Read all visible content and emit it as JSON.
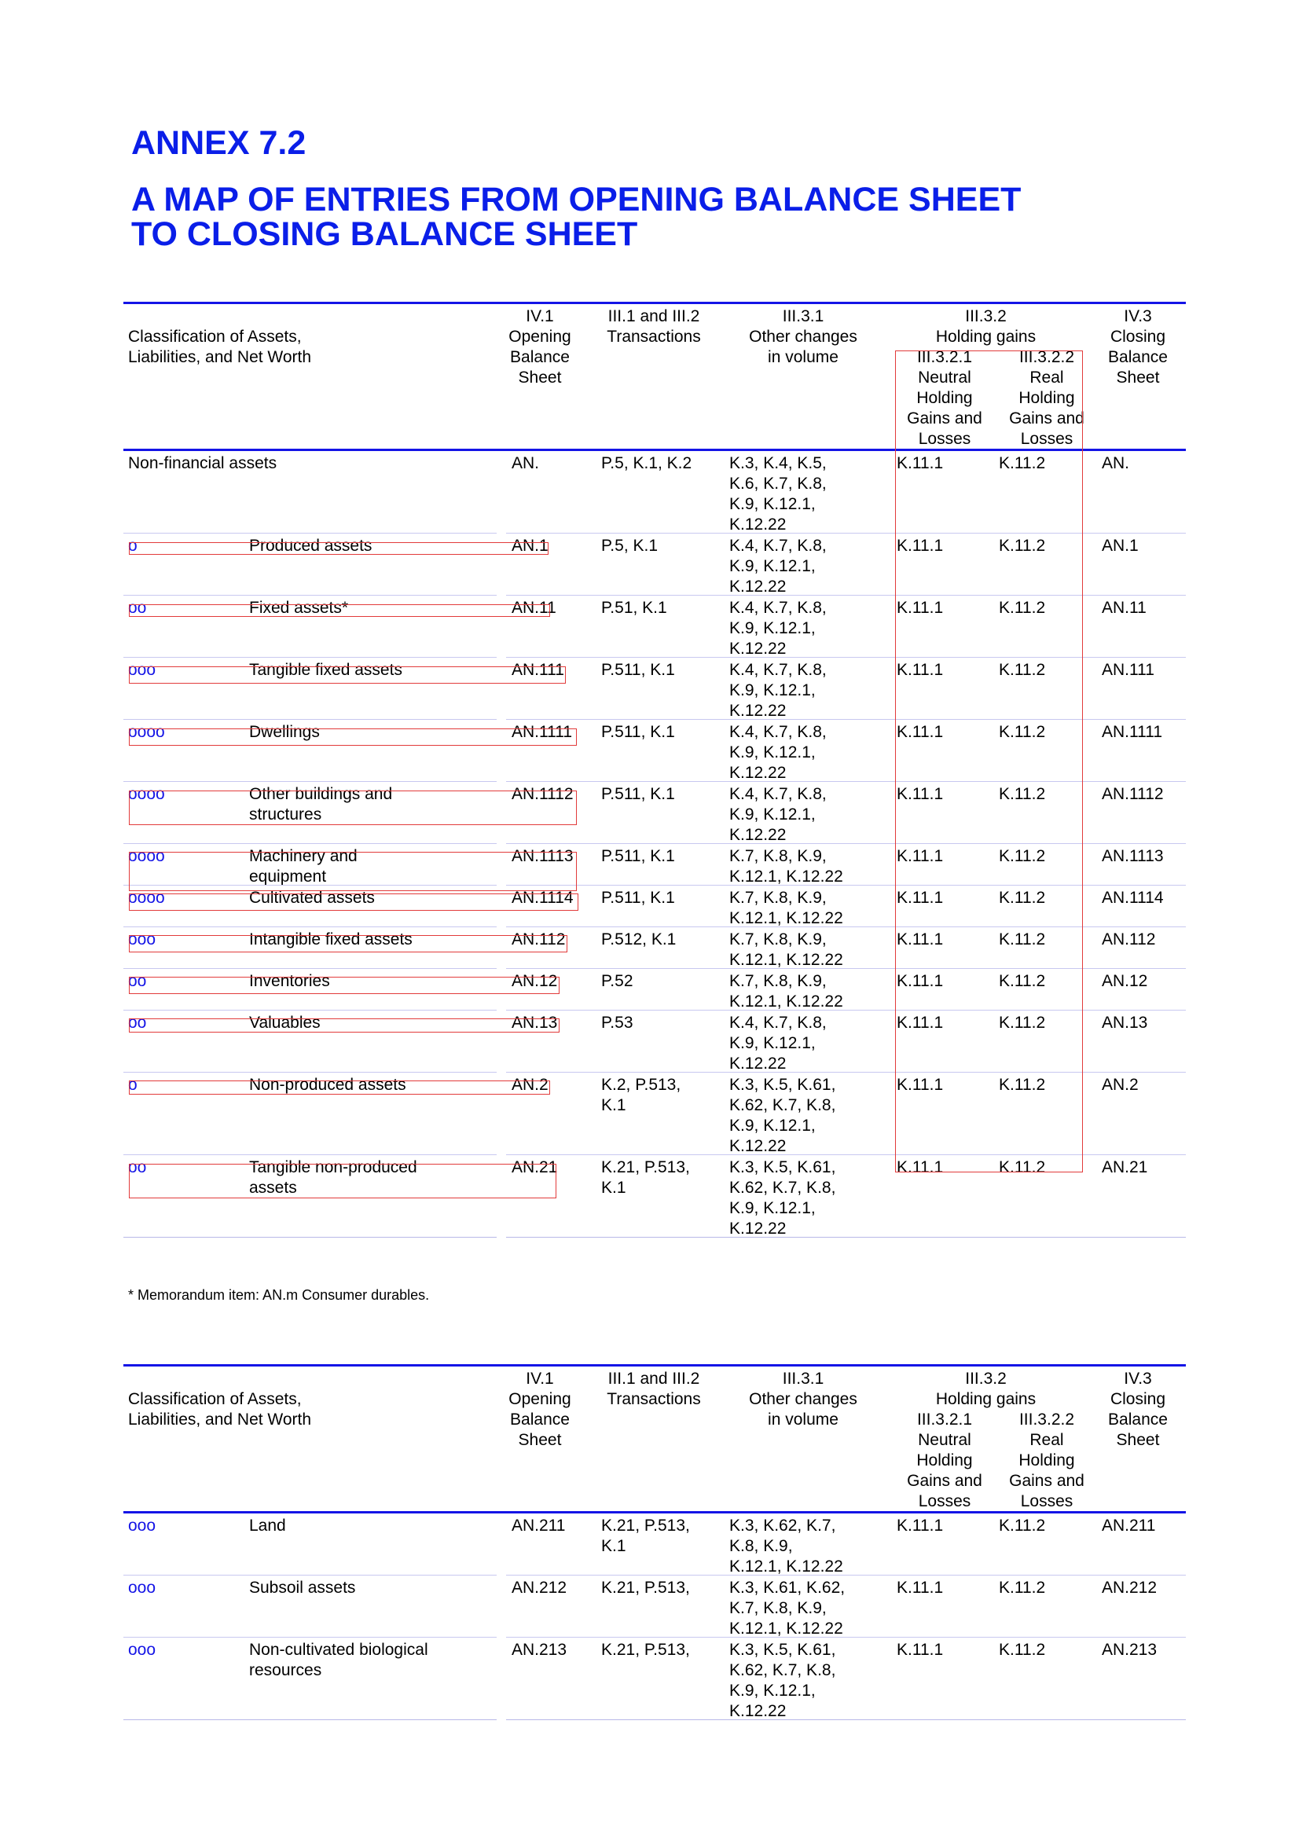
{
  "annex_title": "ANNEX 7.2",
  "main_title_line1": "A MAP OF ENTRIES FROM OPENING BALANCE SHEET",
  "main_title_line2": "TO CLOSING BALANCE SHEET",
  "header": {
    "classification": [
      "Classification of Assets,",
      "Liabilities, and Net Worth"
    ],
    "col1": [
      "IV.1",
      "Opening",
      "Balance",
      "Sheet"
    ],
    "col2": [
      "III.1 and III.2",
      "Transactions"
    ],
    "col3": [
      "III.3.1",
      "Other changes",
      "in volume"
    ],
    "col4": [
      "III.3.2",
      "Holding gains"
    ],
    "col4a": [
      "III.3.2.1",
      "Neutral",
      "Holding",
      "Gains and",
      "Losses"
    ],
    "col4b": [
      "III.3.2.2",
      "Real",
      "Holding",
      "Gains and",
      "Losses"
    ],
    "col5": [
      "IV.3",
      "Closing",
      "Balance",
      "Sheet"
    ]
  },
  "table1_rows": [
    {
      "level": "",
      "label": [
        "Non-financial assets"
      ],
      "code": "AN.",
      "trans": [
        "P.5, K.1, K.2"
      ],
      "other": [
        "K.3, K.4, K.5,",
        "K.6, K.7, K.8,",
        "K.9, K.12.1,",
        "K.12.22"
      ],
      "neutral": "K.11.1",
      "real": "K.11.2",
      "closing": "AN."
    },
    {
      "level": "o",
      "label": [
        "Produced assets"
      ],
      "code": "AN.1",
      "trans": [
        "P.5, K.1"
      ],
      "other": [
        "K.4, K.7, K.8,",
        "K.9, K.12.1,",
        "K.12.22"
      ],
      "neutral": "K.11.1",
      "real": "K.11.2",
      "closing": "AN.1"
    },
    {
      "level": "oo",
      "label": [
        "Fixed assets*"
      ],
      "code": "AN.11",
      "trans": [
        "P.51, K.1"
      ],
      "other": [
        "K.4, K.7, K.8,",
        "K.9, K.12.1,",
        "K.12.22"
      ],
      "neutral": "K.11.1",
      "real": "K.11.2",
      "closing": "AN.11"
    },
    {
      "level": "ooo",
      "label": [
        "Tangible fixed assets"
      ],
      "code": "AN.111",
      "trans": [
        "P.511, K.1"
      ],
      "other": [
        "K.4, K.7, K.8,",
        "K.9, K.12.1,",
        "K.12.22"
      ],
      "neutral": "K.11.1",
      "real": "K.11.2",
      "closing": "AN.111"
    },
    {
      "level": "oooo",
      "label": [
        "Dwellings"
      ],
      "code": "AN.1111",
      "trans": [
        "P.511, K.1"
      ],
      "other": [
        "K.4, K.7, K.8,",
        "K.9, K.12.1,",
        "K.12.22"
      ],
      "neutral": "K.11.1",
      "real": "K.11.2",
      "closing": "AN.1111"
    },
    {
      "level": "oooo",
      "label": [
        "Other buildings and",
        "structures"
      ],
      "code": "AN.1112",
      "trans": [
        "P.511, K.1"
      ],
      "other": [
        "K.4, K.7, K.8,",
        "K.9, K.12.1,",
        "K.12.22"
      ],
      "neutral": "K.11.1",
      "real": "K.11.2",
      "closing": "AN.1112"
    },
    {
      "level": "oooo",
      "label": [
        "Machinery and",
        "equipment"
      ],
      "code": "AN.1113",
      "trans": [
        "P.511, K.1"
      ],
      "other": [
        "K.7, K.8, K.9,",
        "K.12.1, K.12.22"
      ],
      "neutral": "K.11.1",
      "real": "K.11.2",
      "closing": "AN.1113"
    },
    {
      "level": "oooo",
      "label": [
        "Cultivated assets"
      ],
      "code": "AN.1114",
      "trans": [
        "P.511, K.1"
      ],
      "other": [
        "K.7, K.8, K.9,",
        "K.12.1, K.12.22"
      ],
      "neutral": "K.11.1",
      "real": "K.11.2",
      "closing": "AN.1114"
    },
    {
      "level": "ooo",
      "label": [
        "Intangible fixed assets"
      ],
      "code": "AN.112",
      "trans": [
        "P.512, K.1"
      ],
      "other": [
        "K.7, K.8, K.9,",
        "K.12.1, K.12.22"
      ],
      "neutral": "K.11.1",
      "real": "K.11.2",
      "closing": "AN.112"
    },
    {
      "level": "oo",
      "label": [
        "Inventories"
      ],
      "code": "AN.12",
      "trans": [
        "P.52"
      ],
      "other": [
        "K.7, K.8, K.9,",
        "K.12.1, K.12.22"
      ],
      "neutral": "K.11.1",
      "real": "K.11.2",
      "closing": "AN.12"
    },
    {
      "level": "oo",
      "label": [
        "Valuables"
      ],
      "code": "AN.13",
      "trans": [
        "P.53"
      ],
      "other": [
        "K.4, K.7, K.8,",
        "K.9, K.12.1,",
        "K.12.22"
      ],
      "neutral": "K.11.1",
      "real": "K.11.2",
      "closing": "AN.13"
    },
    {
      "level": "o",
      "label": [
        "Non-produced assets"
      ],
      "code": "AN.2",
      "trans": [
        "K.2, P.513,",
        "K.1"
      ],
      "other": [
        "K.3, K.5, K.61,",
        "K.62, K.7, K.8,",
        "K.9, K.12.1,",
        "K.12.22"
      ],
      "neutral": "K.11.1",
      "real": "K.11.2",
      "closing": "AN.2"
    },
    {
      "level": "oo",
      "label": [
        "Tangible non-produced",
        "assets"
      ],
      "code": "AN.21",
      "trans": [
        "K.21, P.513,",
        "K.1"
      ],
      "other": [
        "K.3, K.5, K.61,",
        "K.62, K.7, K.8,",
        "K.9, K.12.1,",
        "K.12.22"
      ],
      "neutral": "K.11.1",
      "real": "K.11.2",
      "closing": "AN.21"
    }
  ],
  "footnote": "* Memorandum item: AN.m  Consumer durables.",
  "table2_rows": [
    {
      "level": "ooo",
      "label": [
        "Land"
      ],
      "code": "AN.211",
      "trans": [
        "K.21, P.513,",
        "K.1"
      ],
      "other": [
        "K.3, K.62, K.7,",
        "K.8, K.9,",
        "K.12.1, K.12.22"
      ],
      "neutral": "K.11.1",
      "real": "K.11.2",
      "closing": "AN.211"
    },
    {
      "level": "ooo",
      "label": [
        "Subsoil assets"
      ],
      "code": "AN.212",
      "trans": [
        "K.21, P.513,"
      ],
      "other": [
        "K.3, K.61, K.62,",
        "K.7, K.8, K.9,",
        "K.12.1, K.12.22"
      ],
      "neutral": "K.11.1",
      "real": "K.11.2",
      "closing": "AN.212"
    },
    {
      "level": "ooo",
      "label": [
        "Non-cultivated biological",
        "resources"
      ],
      "code": "AN.213",
      "trans": [
        "K.21, P.513,"
      ],
      "other": [
        "K.3, K.5, K.61,",
        "K.62, K.7, K.8,",
        "K.9, K.12.1,",
        "K.12.22"
      ],
      "neutral": "K.11.1",
      "real": "K.11.2",
      "closing": "AN.213"
    }
  ]
}
